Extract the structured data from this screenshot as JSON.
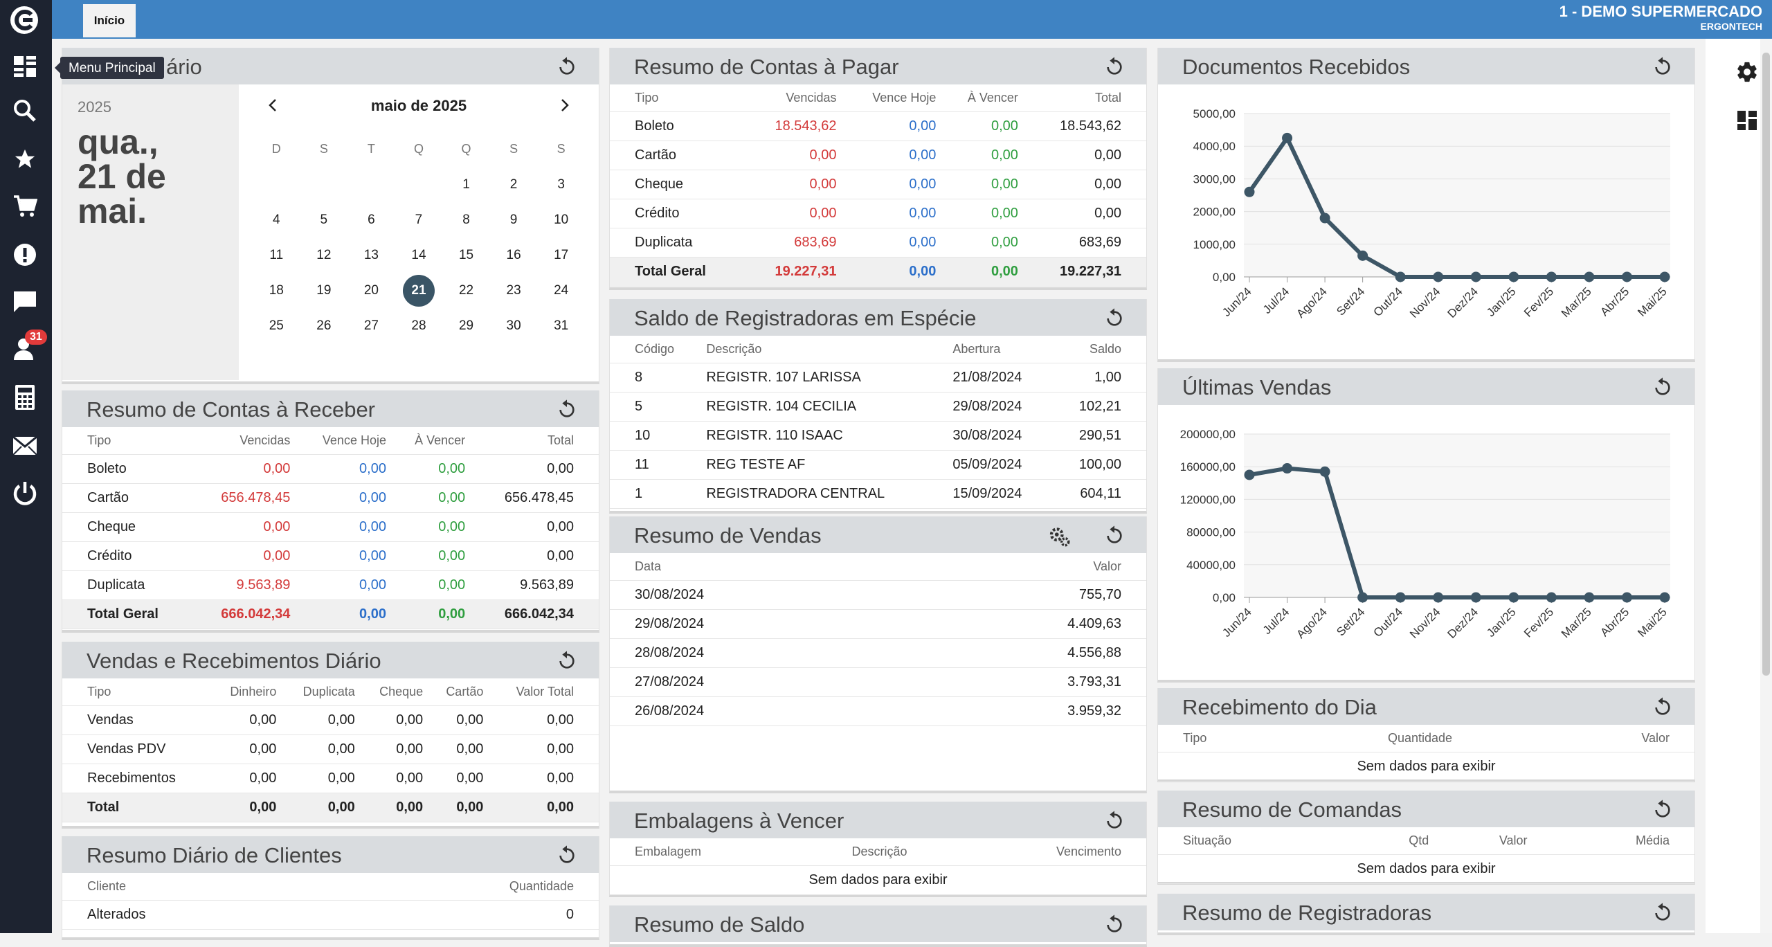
{
  "header": {
    "tab_label": "Início",
    "company_name": "1 - DEMO SUPERMERCADO",
    "company_sub": "ERGONTECH"
  },
  "sidebar": {
    "tooltip": "Menu Principal",
    "badge_count": "31",
    "items": [
      "menu-principal",
      "search",
      "favorites",
      "cart",
      "alerts",
      "messages",
      "clients",
      "calculator",
      "mail",
      "power"
    ]
  },
  "calendar": {
    "title_visible": "ário",
    "year": "2025",
    "weekday": "qua.,",
    "day_line": "21 de",
    "month_line": "mai.",
    "month_title": "maio de 2025",
    "weekdays": [
      "D",
      "S",
      "T",
      "Q",
      "Q",
      "S",
      "S"
    ],
    "weeks": [
      [
        "",
        "",
        "",
        "",
        "1",
        "2",
        "3"
      ],
      [
        "4",
        "5",
        "6",
        "7",
        "8",
        "9",
        "10"
      ],
      [
        "11",
        "12",
        "13",
        "14",
        "15",
        "16",
        "17"
      ],
      [
        "18",
        "19",
        "20",
        "21",
        "22",
        "23",
        "24"
      ],
      [
        "25",
        "26",
        "27",
        "28",
        "29",
        "30",
        "31"
      ]
    ],
    "selected": "21"
  },
  "receber": {
    "title": "Resumo de Contas à Receber",
    "headers": [
      "Tipo",
      "Vencidas",
      "Vence Hoje",
      "À Vencer",
      "Total"
    ],
    "rows": [
      [
        "Boleto",
        "0,00",
        "0,00",
        "0,00",
        "0,00"
      ],
      [
        "Cartão",
        "656.478,45",
        "0,00",
        "0,00",
        "656.478,45"
      ],
      [
        "Cheque",
        "0,00",
        "0,00",
        "0,00",
        "0,00"
      ],
      [
        "Crédito",
        "0,00",
        "0,00",
        "0,00",
        "0,00"
      ],
      [
        "Duplicata",
        "9.563,89",
        "0,00",
        "0,00",
        "9.563,89"
      ]
    ],
    "total": [
      "Total Geral",
      "666.042,34",
      "0,00",
      "0,00",
      "666.042,34"
    ]
  },
  "vendas_receb": {
    "title": "Vendas e Recebimentos Diário",
    "headers": [
      "Tipo",
      "Dinheiro",
      "Duplicata",
      "Cheque",
      "Cartão",
      "Valor Total"
    ],
    "rows": [
      [
        "Vendas",
        "0,00",
        "0,00",
        "0,00",
        "0,00",
        "0,00"
      ],
      [
        "Vendas PDV",
        "0,00",
        "0,00",
        "0,00",
        "0,00",
        "0,00"
      ],
      [
        "Recebimentos",
        "0,00",
        "0,00",
        "0,00",
        "0,00",
        "0,00"
      ]
    ],
    "total": [
      "Total",
      "0,00",
      "0,00",
      "0,00",
      "0,00",
      "0,00"
    ]
  },
  "clientes": {
    "title": "Resumo Diário de Clientes",
    "headers": [
      "Cliente",
      "Quantidade"
    ],
    "rows": [
      [
        "Alterados",
        "0"
      ]
    ]
  },
  "pagar": {
    "title": "Resumo de Contas à Pagar",
    "headers": [
      "Tipo",
      "Vencidas",
      "Vence Hoje",
      "À Vencer",
      "Total"
    ],
    "rows": [
      [
        "Boleto",
        "18.543,62",
        "0,00",
        "0,00",
        "18.543,62"
      ],
      [
        "Cartão",
        "0,00",
        "0,00",
        "0,00",
        "0,00"
      ],
      [
        "Cheque",
        "0,00",
        "0,00",
        "0,00",
        "0,00"
      ],
      [
        "Crédito",
        "0,00",
        "0,00",
        "0,00",
        "0,00"
      ],
      [
        "Duplicata",
        "683,69",
        "0,00",
        "0,00",
        "683,69"
      ]
    ],
    "total": [
      "Total Geral",
      "19.227,31",
      "0,00",
      "0,00",
      "19.227,31"
    ]
  },
  "registradoras": {
    "title": "Saldo de Registradoras em Espécie",
    "headers": [
      "Código",
      "Descrição",
      "Abertura",
      "Saldo"
    ],
    "rows": [
      [
        "8",
        "REGISTR. 107 LARISSA",
        "21/08/2024",
        "1,00"
      ],
      [
        "5",
        "REGISTR. 104 CECILIA",
        "29/08/2024",
        "102,21"
      ],
      [
        "10",
        "REGISTR. 110 ISAAC",
        "30/08/2024",
        "290,51"
      ],
      [
        "11",
        "REG TESTE AF",
        "05/09/2024",
        "100,00"
      ],
      [
        "1",
        "REGISTRADORA CENTRAL",
        "15/09/2024",
        "604,11"
      ]
    ]
  },
  "resumo_vendas": {
    "title": "Resumo de Vendas",
    "headers": [
      "Data",
      "Valor"
    ],
    "rows": [
      [
        "30/08/2024",
        "755,70"
      ],
      [
        "29/08/2024",
        "4.409,63"
      ],
      [
        "28/08/2024",
        "4.556,88"
      ],
      [
        "27/08/2024",
        "3.793,31"
      ],
      [
        "26/08/2024",
        "3.959,32"
      ]
    ]
  },
  "embalagens": {
    "title": "Embalagens à Vencer",
    "headers": [
      "Embalagem",
      "Descrição",
      "Vencimento"
    ],
    "empty": "Sem dados para exibir"
  },
  "resumo_saldo": {
    "title": "Resumo de Saldo"
  },
  "docs": {
    "title": "Documentos Recebidos"
  },
  "ultimas": {
    "title": "Últimas Vendas"
  },
  "receb_dia": {
    "title": "Recebimento do Dia",
    "headers": [
      "Tipo",
      "Quantidade",
      "Valor"
    ],
    "empty": "Sem dados para exibir"
  },
  "comandas": {
    "title": "Resumo de Comandas",
    "headers": [
      "Situação",
      "Qtd",
      "Valor",
      "Média"
    ],
    "empty": "Sem dados para exibir"
  },
  "resumo_reg": {
    "title": "Resumo de Registradoras"
  },
  "chart_data": [
    {
      "type": "line",
      "title": "Documentos Recebidos",
      "x": [
        "Jun/24",
        "Jul/24",
        "Ago/24",
        "Set/24",
        "Out/24",
        "Nov/24",
        "Dez/24",
        "Jan/25",
        "Fev/25",
        "Mar/25",
        "Abr/25",
        "Mai/25"
      ],
      "values": [
        2600,
        4250,
        1800,
        650,
        0,
        0,
        0,
        0,
        0,
        0,
        0,
        0
      ],
      "yticks": [
        "0,00",
        "1000,00",
        "2000,00",
        "3000,00",
        "4000,00",
        "5000,00"
      ],
      "ylim": [
        0,
        5000
      ],
      "grid": true,
      "color": "#3d5666"
    },
    {
      "type": "line",
      "title": "Últimas Vendas",
      "x": [
        "Jun/24",
        "Jul/24",
        "Ago/24",
        "Set/24",
        "Out/24",
        "Nov/24",
        "Dez/24",
        "Jan/25",
        "Fev/25",
        "Mar/25",
        "Abr/25",
        "Mai/25"
      ],
      "values": [
        150000,
        158000,
        154000,
        0,
        0,
        0,
        0,
        0,
        0,
        0,
        0,
        0
      ],
      "yticks": [
        "0,00",
        "40000,00",
        "80000,00",
        "120000,00",
        "160000,00",
        "200000,00"
      ],
      "ylim": [
        0,
        200000
      ],
      "grid": true,
      "color": "#3d5666"
    }
  ]
}
